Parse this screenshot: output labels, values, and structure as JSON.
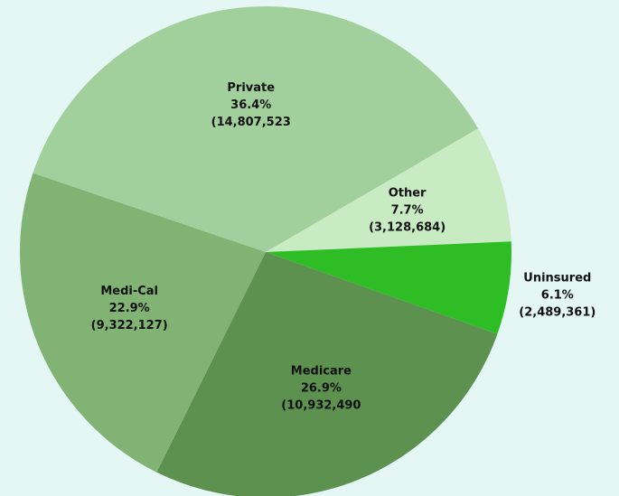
{
  "chart_data": {
    "type": "pie",
    "categories": [
      "Other",
      "Uninsured",
      "Medicare",
      "Medi-Cal",
      "Private"
    ],
    "values": [
      7.7,
      6.1,
      26.9,
      22.9,
      36.4
    ],
    "value_labels": [
      "7.7%",
      "6.1%",
      "26.9%",
      "22.9%",
      "36.4%"
    ],
    "detail_labels": [
      "(3,128,684)",
      "(2,489,361)",
      "(10,932,490",
      "(9,322,127)",
      "(14,807,523"
    ],
    "colors": [
      "#c8ebc4",
      "#2ebd24",
      "#5c9150",
      "#80b374",
      "#a2d09c"
    ]
  }
}
